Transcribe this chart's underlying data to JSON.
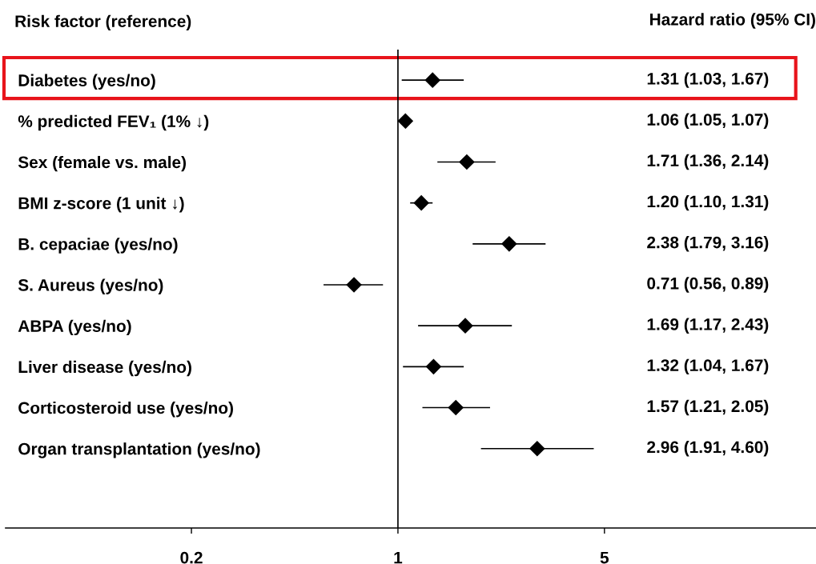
{
  "chart_data": {
    "type": "scatter",
    "orientation": "horizontal",
    "title": "Hazard ratio (95% CI)",
    "ylabel": "Risk factor (reference)",
    "categories": [
      "Diabetes (yes/no)",
      "% predicted FEV₁ (1% ↓)",
      "Sex (female vs. male)",
      "BMI z-score (1 unit ↓)",
      "B. cepaciae (yes/no)",
      "S. Aureus (yes/no)",
      "ABPA (yes/no)",
      "Liver disease (yes/no)",
      "Corticosteroid use (yes/no)",
      "Organ transplantation (yes/no)"
    ],
    "values": [
      1.31,
      1.06,
      1.71,
      1.2,
      2.38,
      0.71,
      1.69,
      1.32,
      1.57,
      2.96
    ],
    "errors": [
      [
        1.03,
        1.67
      ],
      [
        1.05,
        1.07
      ],
      [
        1.36,
        2.14
      ],
      [
        1.1,
        1.31
      ],
      [
        1.79,
        3.16
      ],
      [
        0.56,
        0.89
      ],
      [
        1.17,
        2.43
      ],
      [
        1.04,
        1.67
      ],
      [
        1.21,
        2.05
      ],
      [
        1.91,
        4.6
      ]
    ],
    "annotations": [
      "1.31 (1.03, 1.67)",
      "1.06 (1.05, 1.07)",
      "1.71 (1.36, 2.14)",
      "1.20 (1.10, 1.31)",
      "2.38 (1.79, 3.16)",
      "0.71 (0.56, 0.89)",
      "1.69 (1.17, 2.43)",
      "1.32 (1.04, 1.67)",
      "1.57 (1.21, 2.05)",
      "2.96 (1.91, 4.60)"
    ],
    "color": "#000000",
    "marker": "diamond",
    "log": "x",
    "xlim": [
      0.047,
      26
    ],
    "xticks": [
      0.2,
      1,
      5
    ],
    "ref_lines": [
      {
        "axis": "x",
        "value": 1,
        "color": "#000000"
      }
    ],
    "grid": false,
    "legend": false
  }
}
